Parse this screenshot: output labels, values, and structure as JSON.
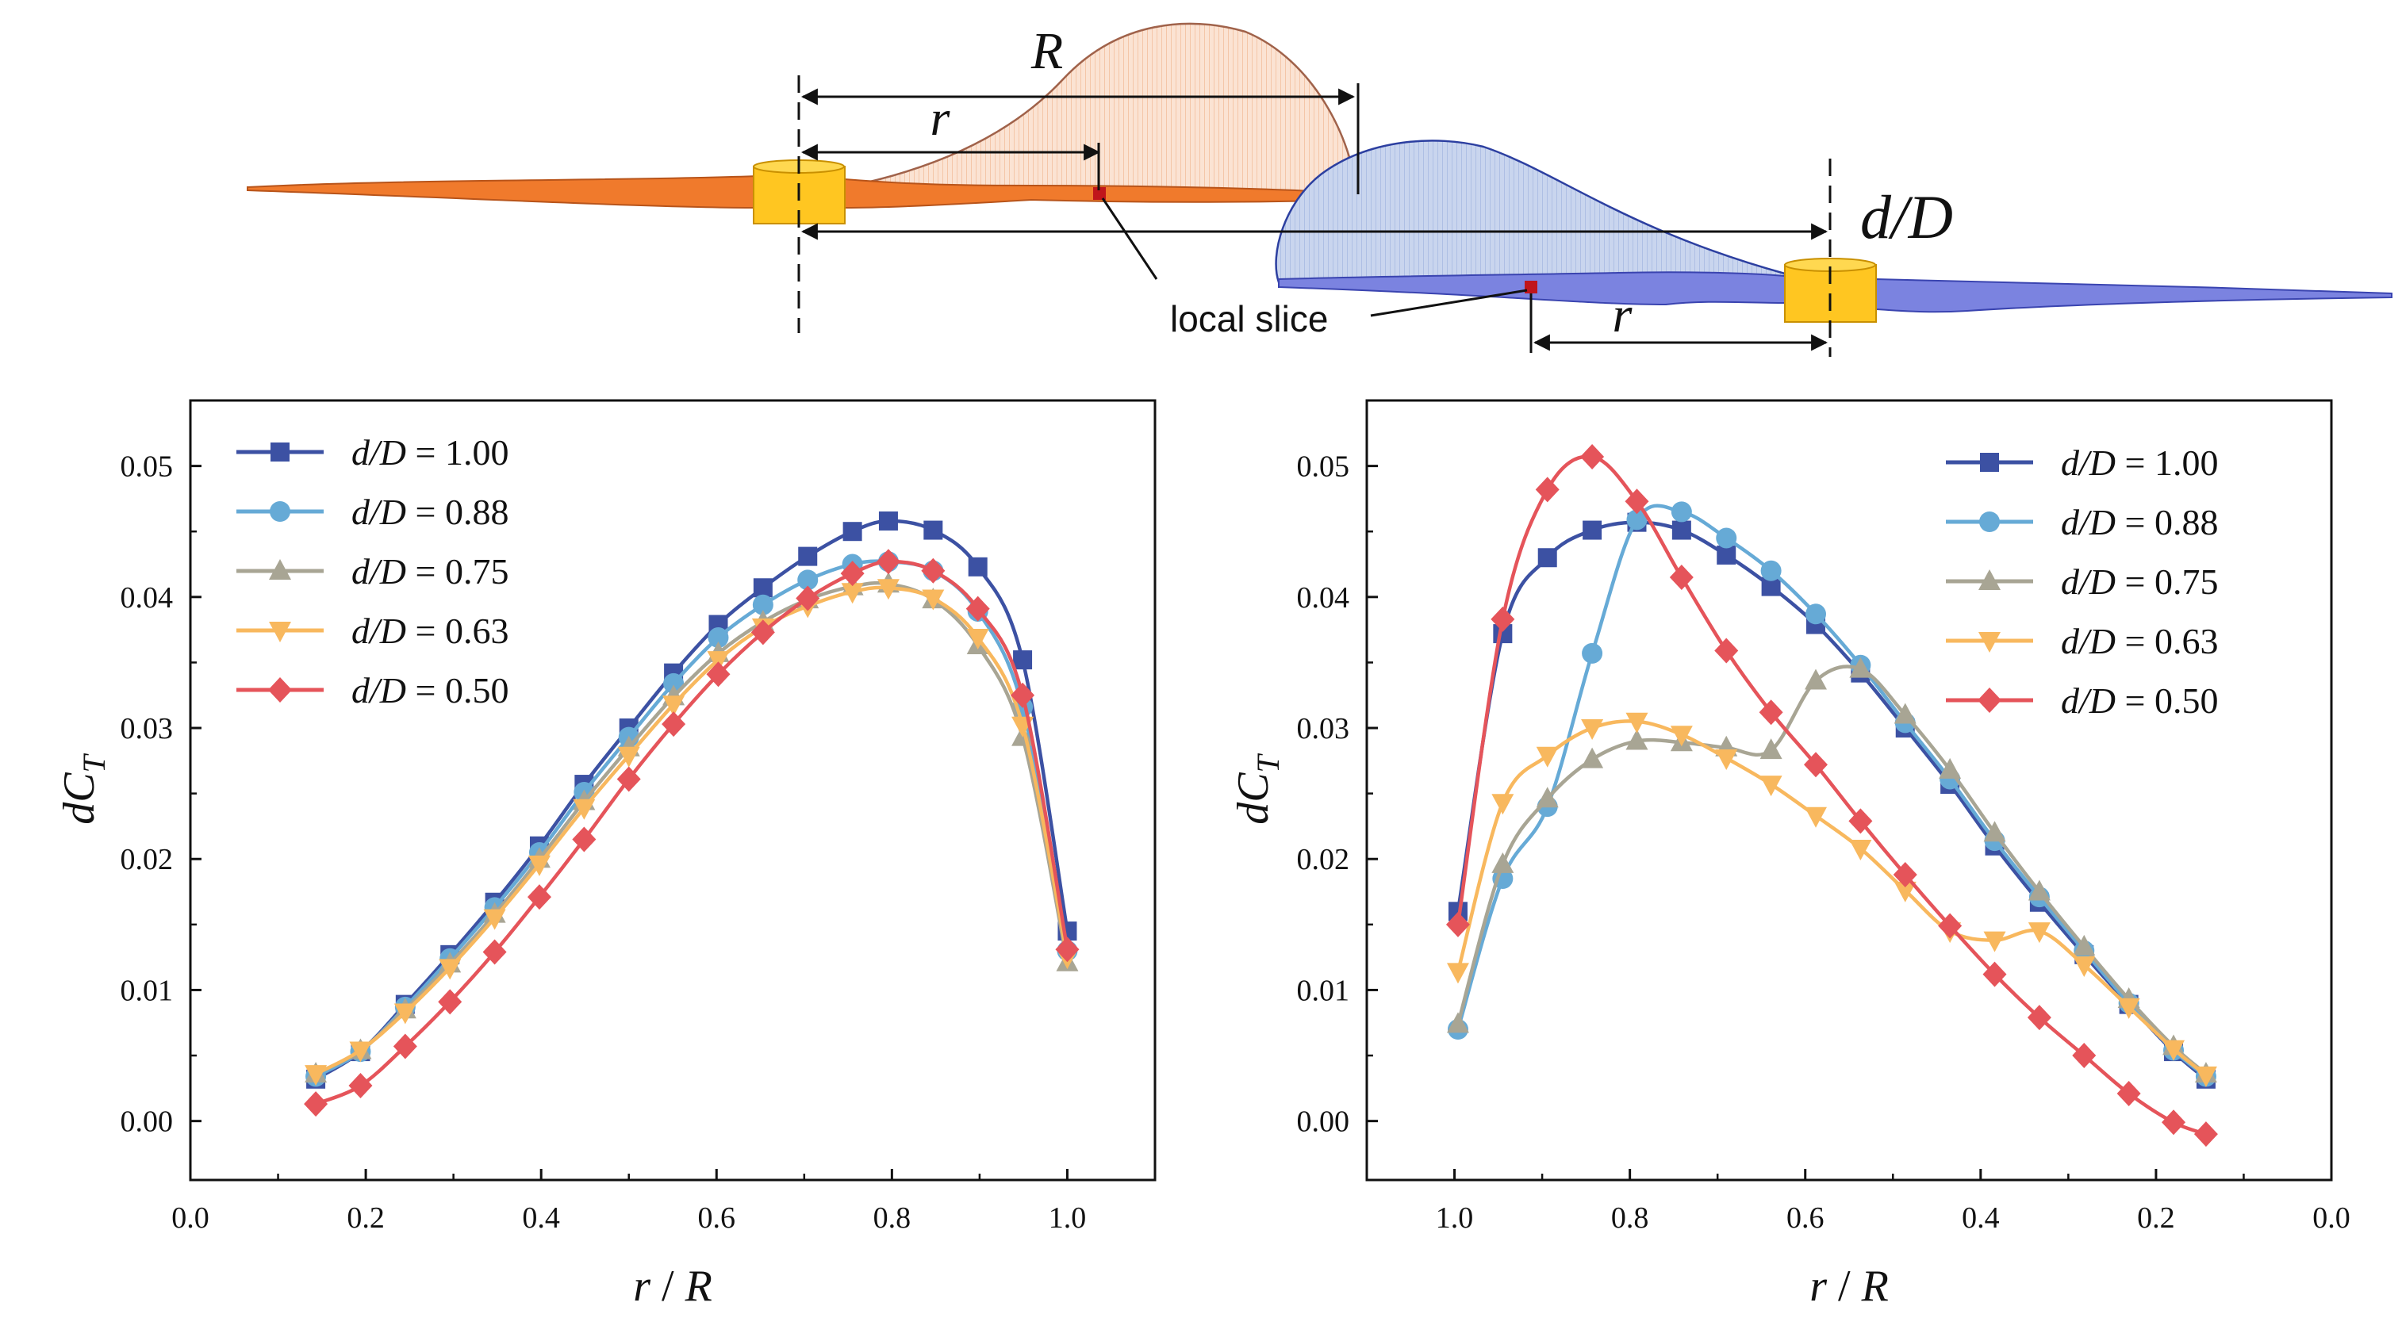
{
  "diagram": {
    "label_R": "R",
    "label_r": "r",
    "label_r2": "r",
    "label_dD": "d/D",
    "label_slice": "local slice"
  },
  "colors": {
    "s100": "#3c51a3",
    "s088": "#66aad6",
    "s075": "#a8a594",
    "s063": "#f8b85e",
    "s050": "#e5545a"
  },
  "chart_data": [
    {
      "type": "line",
      "title": "",
      "xlabel": "r / R",
      "ylabel": "dC_T",
      "xlim": [
        0.0,
        1.1
      ],
      "ylim": [
        -0.0045,
        0.055
      ],
      "xticks": [
        "0.0",
        "0.2",
        "0.4",
        "0.6",
        "0.8",
        "1.0"
      ],
      "yticks": [
        "0.00",
        "0.01",
        "0.02",
        "0.03",
        "0.04",
        "0.05"
      ],
      "legend_position": "top-left",
      "x": [
        0.143,
        0.194,
        0.245,
        0.296,
        0.347,
        0.398,
        0.449,
        0.5,
        0.551,
        0.602,
        0.653,
        0.704,
        0.755,
        0.796,
        0.847,
        0.898,
        0.949,
        1.0
      ],
      "series": [
        {
          "name": "d/D = 1.00",
          "marker": "square",
          "values": [
            0.0032,
            0.0053,
            0.0089,
            0.0127,
            0.0167,
            0.021,
            0.0257,
            0.03,
            0.0342,
            0.0379,
            0.0407,
            0.0431,
            0.045,
            0.0458,
            0.0451,
            0.0423,
            0.0352,
            0.0145
          ]
        },
        {
          "name": "d/D = 0.88",
          "marker": "circle",
          "values": [
            0.0034,
            0.0053,
            0.0087,
            0.0124,
            0.0163,
            0.0205,
            0.0251,
            0.0293,
            0.0334,
            0.0369,
            0.0394,
            0.0413,
            0.0425,
            0.0427,
            0.042,
            0.0389,
            0.0316,
            0.013
          ]
        },
        {
          "name": "d/D = 0.75",
          "marker": "triangle-up",
          "values": [
            0.0036,
            0.0054,
            0.0085,
            0.012,
            0.0158,
            0.02,
            0.0244,
            0.0285,
            0.0324,
            0.0357,
            0.0381,
            0.0398,
            0.0408,
            0.041,
            0.0398,
            0.0363,
            0.0293,
            0.0121
          ]
        },
        {
          "name": "d/D = 0.63",
          "marker": "triangle-down",
          "values": [
            0.0036,
            0.0054,
            0.0083,
            0.0117,
            0.0155,
            0.0196,
            0.0239,
            0.0279,
            0.0318,
            0.0352,
            0.0377,
            0.0393,
            0.0404,
            0.0407,
            0.0399,
            0.0369,
            0.0302,
            0.0125
          ]
        },
        {
          "name": "d/D = 0.50",
          "marker": "diamond",
          "values": [
            0.0013,
            0.0027,
            0.0057,
            0.0091,
            0.0129,
            0.0171,
            0.0215,
            0.0261,
            0.0303,
            0.0341,
            0.0373,
            0.0399,
            0.0418,
            0.0427,
            0.042,
            0.0391,
            0.0325,
            0.0131
          ]
        }
      ]
    },
    {
      "type": "line",
      "title": "",
      "xlabel": "r / R",
      "ylabel": "dC_T",
      "xlim": [
        1.1,
        0.0
      ],
      "ylim": [
        -0.0045,
        0.055
      ],
      "xticks": [
        "1.0",
        "0.8",
        "0.6",
        "0.4",
        "0.2",
        "0.0"
      ],
      "yticks": [
        "0.00",
        "0.01",
        "0.02",
        "0.03",
        "0.04",
        "0.05"
      ],
      "legend_position": "top-right",
      "x": [
        0.996,
        0.945,
        0.894,
        0.843,
        0.792,
        0.741,
        0.69,
        0.639,
        0.588,
        0.537,
        0.486,
        0.435,
        0.384,
        0.333,
        0.282,
        0.231,
        0.18,
        0.143
      ],
      "series": [
        {
          "name": "d/D = 1.00",
          "marker": "square",
          "values": [
            0.016,
            0.0372,
            0.043,
            0.0451,
            0.0457,
            0.0451,
            0.0432,
            0.0408,
            0.0379,
            0.0342,
            0.03,
            0.0257,
            0.021,
            0.0167,
            0.0127,
            0.0089,
            0.0053,
            0.0032
          ]
        },
        {
          "name": "d/D = 0.88",
          "marker": "circle",
          "values": [
            0.007,
            0.0185,
            0.024,
            0.0357,
            0.0459,
            0.0465,
            0.0445,
            0.042,
            0.0387,
            0.0348,
            0.0304,
            0.0261,
            0.0214,
            0.0171,
            0.013,
            0.009,
            0.0054,
            0.0034
          ]
        },
        {
          "name": "d/D = 0.75",
          "marker": "triangle-up",
          "values": [
            0.0074,
            0.0196,
            0.0246,
            0.0276,
            0.029,
            0.0289,
            0.0285,
            0.0283,
            0.0336,
            0.0345,
            0.031,
            0.0268,
            0.022,
            0.0175,
            0.0133,
            0.0093,
            0.0057,
            0.0036
          ]
        },
        {
          "name": "d/D = 0.63",
          "marker": "triangle-down",
          "values": [
            0.0114,
            0.0243,
            0.0279,
            0.03,
            0.0305,
            0.0295,
            0.0277,
            0.0257,
            0.0233,
            0.0208,
            0.0176,
            0.0145,
            0.0138,
            0.0145,
            0.0119,
            0.0087,
            0.0055,
            0.0035
          ]
        },
        {
          "name": "d/D = 0.50",
          "marker": "diamond",
          "values": [
            0.015,
            0.0383,
            0.0482,
            0.0507,
            0.0473,
            0.0415,
            0.0359,
            0.0312,
            0.0272,
            0.0229,
            0.0188,
            0.0149,
            0.0112,
            0.0079,
            0.005,
            0.0021,
            -0.0001,
            -0.001
          ]
        }
      ]
    }
  ]
}
